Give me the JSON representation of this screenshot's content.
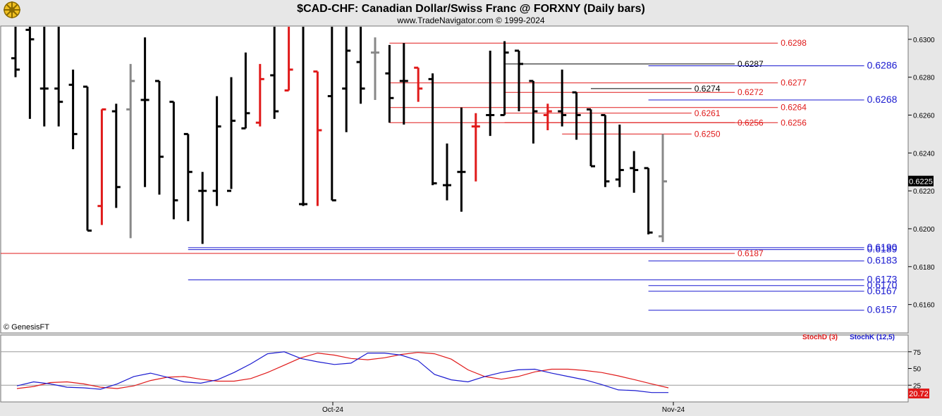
{
  "header": {
    "title": "$CAD-CHF:  Canadian Dollar/Swiss Franc @ FORXNY  (Daily bars)",
    "subtitle": "www.TradeNavigator.com © 1999-2024",
    "logo_icon": "ship-wheel-logo-icon"
  },
  "footer": {
    "watermark": "© GenesisFT"
  },
  "colors": {
    "background": "#ffffff",
    "page": "#e7e7e7",
    "up_bar": "#000000",
    "down_bar": "#e01a1a",
    "neutral_bar": "#888888",
    "stochD": "#e01a1a",
    "stochK": "#1a1ad0",
    "level_red": "#e01a1a",
    "level_blue": "#1a1ad0",
    "level_black": "#000000"
  },
  "chart_data": [
    {
      "type": "ohlc",
      "title": "$CAD-CHF:  Canadian Dollar/Swiss Franc @ FORXNY  (Daily bars)",
      "x_labels": [
        "Oct-24",
        "Nov-24"
      ],
      "ylim": [
        0.6145,
        0.6307
      ],
      "y_ticks": [
        0.616,
        0.618,
        0.62,
        0.622,
        0.624,
        0.626,
        0.628,
        0.63
      ],
      "y_tick_labels": [
        "0.6160",
        "0.6180",
        "0.6200",
        "0.6220",
        "0.6240",
        "0.6260",
        "0.6280",
        "0.6300"
      ],
      "last_price": "0.6225",
      "bars": [
        {
          "o": 0.629,
          "h": 0.631,
          "l": 0.628,
          "c": 0.6284,
          "color": "black"
        },
        {
          "o": 0.6305,
          "h": 0.631,
          "l": 0.6258,
          "c": 0.63,
          "color": "black"
        },
        {
          "o": 0.6274,
          "h": 0.631,
          "l": 0.6254,
          "c": 0.6274,
          "color": "black"
        },
        {
          "o": 0.6274,
          "h": 0.631,
          "l": 0.6254,
          "c": 0.6267,
          "color": "black"
        },
        {
          "o": 0.6276,
          "h": 0.6284,
          "l": 0.6242,
          "c": 0.625,
          "color": "black"
        },
        {
          "o": 0.6275,
          "h": 0.6275,
          "l": 0.6199,
          "c": 0.6199,
          "color": "black"
        },
        {
          "o": 0.6212,
          "h": 0.6263,
          "l": 0.6202,
          "c": 0.6263,
          "color": "red"
        },
        {
          "o": 0.6262,
          "h": 0.6266,
          "l": 0.6211,
          "c": 0.6222,
          "color": "black"
        },
        {
          "o": 0.6263,
          "h": 0.6287,
          "l": 0.6195,
          "c": 0.6278,
          "color": "gray"
        },
        {
          "o": 0.6268,
          "h": 0.6301,
          "l": 0.6222,
          "c": 0.6268,
          "color": "black"
        },
        {
          "o": 0.6278,
          "h": 0.6278,
          "l": 0.6218,
          "c": 0.6238,
          "color": "black"
        },
        {
          "o": 0.6267,
          "h": 0.6267,
          "l": 0.6205,
          "c": 0.6215,
          "color": "black"
        },
        {
          "o": 0.625,
          "h": 0.625,
          "l": 0.6204,
          "c": 0.623,
          "color": "black"
        },
        {
          "o": 0.622,
          "h": 0.623,
          "l": 0.6192,
          "c": 0.622,
          "color": "black"
        },
        {
          "o": 0.622,
          "h": 0.627,
          "l": 0.6212,
          "c": 0.6254,
          "color": "black"
        },
        {
          "o": 0.622,
          "h": 0.628,
          "l": 0.6221,
          "c": 0.6257,
          "color": "black"
        },
        {
          "o": 0.6253,
          "h": 0.6293,
          "l": 0.6253,
          "c": 0.6261,
          "color": "black"
        },
        {
          "o": 0.6256,
          "h": 0.6287,
          "l": 0.6254,
          "c": 0.6279,
          "color": "red"
        },
        {
          "o": 0.6281,
          "h": 0.631,
          "l": 0.6258,
          "c": 0.6262,
          "color": "black"
        },
        {
          "o": 0.6273,
          "h": 0.631,
          "l": 0.6273,
          "c": 0.6284,
          "color": "red"
        },
        {
          "o": 0.6213,
          "h": 0.631,
          "l": 0.6212,
          "c": 0.6213,
          "color": "black"
        },
        {
          "o": 0.6283,
          "h": 0.6283,
          "l": 0.6212,
          "c": 0.6252,
          "color": "red"
        },
        {
          "o": 0.627,
          "h": 0.631,
          "l": 0.6215,
          "c": 0.6215,
          "color": "black"
        },
        {
          "o": 0.6274,
          "h": 0.631,
          "l": 0.6251,
          "c": 0.6294,
          "color": "black"
        },
        {
          "o": 0.6288,
          "h": 0.631,
          "l": 0.6266,
          "c": 0.6274,
          "color": "black"
        },
        {
          "o": 0.6293,
          "h": 0.6301,
          "l": 0.6268,
          "c": 0.6293,
          "color": "gray"
        },
        {
          "o": 0.6282,
          "h": 0.6297,
          "l": 0.6256,
          "c": 0.6269,
          "color": "black"
        },
        {
          "o": 0.6278,
          "h": 0.6298,
          "l": 0.6255,
          "c": 0.6278,
          "color": "black"
        },
        {
          "o": 0.6285,
          "h": 0.6285,
          "l": 0.6267,
          "c": 0.6274,
          "color": "red"
        },
        {
          "o": 0.6279,
          "h": 0.6282,
          "l": 0.6223,
          "c": 0.6224,
          "color": "black"
        },
        {
          "o": 0.6223,
          "h": 0.6245,
          "l": 0.6215,
          "c": 0.6223,
          "color": "black"
        },
        {
          "o": 0.623,
          "h": 0.6264,
          "l": 0.6209,
          "c": 0.623,
          "color": "black"
        },
        {
          "o": 0.6254,
          "h": 0.6261,
          "l": 0.6225,
          "c": 0.6254,
          "color": "red"
        },
        {
          "o": 0.626,
          "h": 0.6294,
          "l": 0.6249,
          "c": 0.626,
          "color": "black"
        },
        {
          "o": 0.626,
          "h": 0.6299,
          "l": 0.626,
          "c": 0.6293,
          "color": "black"
        },
        {
          "o": 0.6294,
          "h": 0.6294,
          "l": 0.6262,
          "c": 0.6287,
          "color": "black"
        },
        {
          "o": 0.6278,
          "h": 0.6278,
          "l": 0.6245,
          "c": 0.6262,
          "color": "black"
        },
        {
          "o": 0.626,
          "h": 0.6266,
          "l": 0.6252,
          "c": 0.6262,
          "color": "red"
        },
        {
          "o": 0.6262,
          "h": 0.6284,
          "l": 0.6254,
          "c": 0.626,
          "color": "black"
        },
        {
          "o": 0.6272,
          "h": 0.6272,
          "l": 0.6247,
          "c": 0.626,
          "color": "black"
        },
        {
          "o": 0.6263,
          "h": 0.6263,
          "l": 0.6233,
          "c": 0.6233,
          "color": "black"
        },
        {
          "o": 0.626,
          "h": 0.626,
          "l": 0.6222,
          "c": 0.6225,
          "color": "black"
        },
        {
          "o": 0.6226,
          "h": 0.6255,
          "l": 0.6222,
          "c": 0.6231,
          "color": "black"
        },
        {
          "o": 0.6232,
          "h": 0.6241,
          "l": 0.6219,
          "c": 0.6231,
          "color": "black"
        },
        {
          "o": 0.6232,
          "h": 0.6232,
          "l": 0.6197,
          "c": 0.6198,
          "color": "black"
        },
        {
          "o": 0.6196,
          "h": 0.625,
          "l": 0.6193,
          "c": 0.6225,
          "color": "gray"
        }
      ],
      "levels": [
        {
          "label": "0.6298",
          "value": 0.6298,
          "color": "red",
          "from": 26,
          "to": 53
        },
        {
          "label": "0.6287",
          "value": 0.6287,
          "color": "black",
          "from": 34,
          "to": 50
        },
        {
          "label": "0.6286",
          "value": 0.6286,
          "color": "blue",
          "from": 44,
          "to": 59
        },
        {
          "label": "0.6277",
          "value": 0.6277,
          "color": "red",
          "from": 26,
          "to": 53
        },
        {
          "label": "0.6274",
          "value": 0.6274,
          "color": "black",
          "from": 40,
          "to": 47
        },
        {
          "label": "0.6272",
          "value": 0.6272,
          "color": "red",
          "from": 34,
          "to": 50
        },
        {
          "label": "0.6268",
          "value": 0.6268,
          "color": "blue",
          "from": 44,
          "to": 59
        },
        {
          "label": "0.6264",
          "value": 0.6264,
          "color": "red",
          "from": 26,
          "to": 53
        },
        {
          "label": "0.6261",
          "value": 0.6261,
          "color": "red",
          "from": 34,
          "to": 47
        },
        {
          "label": "0.6256",
          "value": 0.6256,
          "color": "red",
          "from": 26,
          "to": 53
        },
        {
          "label": "0.6256",
          "value": 0.6256,
          "color": "red",
          "from": 34,
          "to": 50
        },
        {
          "label": "0.6250",
          "value": 0.625,
          "color": "red",
          "from": 38,
          "to": 47
        },
        {
          "label": "0.6190",
          "value": 0.619,
          "color": "blue",
          "from": 12,
          "to": 59
        },
        {
          "label": "0.6189",
          "value": 0.6189,
          "color": "blue",
          "from": 12,
          "to": 59
        },
        {
          "label": "0.6187",
          "value": 0.6187,
          "color": "red",
          "from": 0,
          "to": 50
        },
        {
          "label": "0.6183",
          "value": 0.6183,
          "color": "blue",
          "from": 44,
          "to": 59
        },
        {
          "label": "0.6173",
          "value": 0.6173,
          "color": "blue",
          "from": 12,
          "to": 59
        },
        {
          "label": "0.6170",
          "value": 0.617,
          "color": "blue",
          "from": 44,
          "to": 59
        },
        {
          "label": "0.6167",
          "value": 0.6167,
          "color": "blue",
          "from": 44,
          "to": 59
        },
        {
          "label": "0.6157",
          "value": 0.6157,
          "color": "blue",
          "from": 44,
          "to": 59
        }
      ]
    },
    {
      "type": "line",
      "title": "",
      "ylim": [
        0,
        100
      ],
      "y_ticks": [
        25,
        50,
        75
      ],
      "y_tick_labels": [
        "25",
        "50",
        "75"
      ],
      "last_value_label": "20.72",
      "series": [
        {
          "name": "StochD (3)",
          "color": "red",
          "values": [
            20,
            23,
            29,
            30,
            27,
            22,
            20,
            24,
            32,
            37,
            38,
            34,
            31,
            31,
            35,
            44,
            55,
            66,
            73,
            70,
            65,
            63,
            66,
            71,
            74,
            72,
            64,
            48,
            38,
            34,
            38,
            45,
            49,
            49,
            47,
            44,
            39,
            33,
            27,
            21
          ]
        },
        {
          "name": "StochK (12,5)",
          "color": "blue",
          "values": [
            24,
            30,
            27,
            22,
            21,
            19,
            27,
            38,
            43,
            37,
            30,
            28,
            33,
            44,
            57,
            72,
            75,
            65,
            60,
            56,
            58,
            73,
            73,
            70,
            62,
            41,
            33,
            30,
            38,
            44,
            48,
            49,
            43,
            38,
            33,
            26,
            18,
            17,
            14,
            14
          ]
        }
      ]
    }
  ]
}
